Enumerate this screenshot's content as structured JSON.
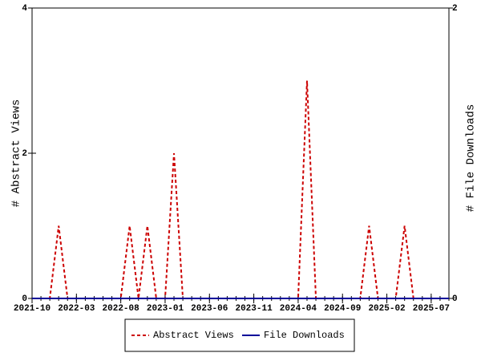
{
  "chart_data": {
    "type": "line",
    "x": [
      "2021-10",
      "2021-11",
      "2021-12",
      "2022-01",
      "2022-02",
      "2022-03",
      "2022-04",
      "2022-05",
      "2022-06",
      "2022-07",
      "2022-08",
      "2022-09",
      "2022-10",
      "2022-11",
      "2022-12",
      "2023-01",
      "2023-02",
      "2023-03",
      "2023-04",
      "2023-05",
      "2023-06",
      "2023-07",
      "2023-08",
      "2023-09",
      "2023-10",
      "2023-11",
      "2023-12",
      "2024-01",
      "2024-02",
      "2024-03",
      "2024-04",
      "2024-05",
      "2024-06",
      "2024-07",
      "2024-08",
      "2024-09",
      "2024-10",
      "2024-11",
      "2024-12",
      "2025-01",
      "2025-02",
      "2025-03",
      "2025-04",
      "2025-05",
      "2025-06",
      "2025-07",
      "2025-08",
      "2025-09"
    ],
    "xticks": [
      "2021-10",
      "2022-03",
      "2022-08",
      "2023-01",
      "2023-06",
      "2023-11",
      "2024-04",
      "2024-09",
      "2025-02",
      "2025-07"
    ],
    "series": [
      {
        "name": "Abstract Views",
        "color": "#cc0000",
        "dash": true,
        "values": [
          0,
          0,
          0,
          1,
          0,
          0,
          0,
          0,
          0,
          0,
          0,
          1,
          0,
          1,
          0,
          0,
          2,
          0,
          0,
          0,
          0,
          0,
          0,
          0,
          0,
          0,
          0,
          0,
          0,
          0,
          0,
          3,
          0,
          0,
          0,
          0,
          0,
          0,
          1,
          0,
          0,
          0,
          1,
          0,
          0,
          0,
          0,
          0
        ]
      },
      {
        "name": "File Downloads",
        "color": "#000099",
        "dash": false,
        "axis": "y2",
        "values": [
          0,
          0,
          0,
          0,
          0,
          0,
          0,
          0,
          0,
          0,
          0,
          0,
          0,
          0,
          0,
          0,
          0,
          0,
          0,
          0,
          0,
          0,
          0,
          0,
          0,
          0,
          0,
          0,
          0,
          0,
          0,
          0,
          0,
          0,
          0,
          0,
          0,
          0,
          0,
          0,
          0,
          0,
          0,
          0,
          0,
          0,
          0,
          0
        ]
      }
    ],
    "ylabel": "# Abstract Views",
    "y2label": "# File Downloads",
    "ylim": [
      0,
      4
    ],
    "yticks": [
      0,
      2,
      4
    ],
    "y2lim": [
      0,
      2
    ],
    "y2ticks": [
      0,
      2
    ]
  }
}
